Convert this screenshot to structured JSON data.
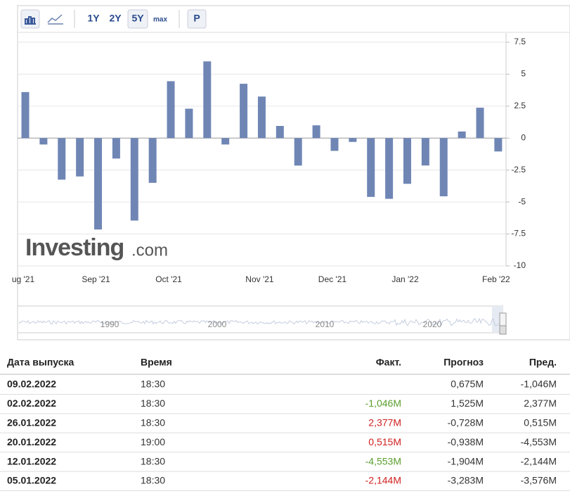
{
  "toolbar": {
    "ranges": [
      "1Y",
      "2Y",
      "5Y",
      "max"
    ],
    "p": "P"
  },
  "chart_data": {
    "type": "bar",
    "categories": [
      "ug '21",
      null,
      null,
      null,
      "Sep '21",
      null,
      null,
      null,
      "Oct '21",
      null,
      null,
      null,
      null,
      "Nov '21",
      null,
      null,
      null,
      "Dec '21",
      null,
      null,
      null,
      "Jan '22",
      null,
      null,
      null,
      null,
      "Feb '22"
    ],
    "values": [
      3.6,
      -0.5,
      -3.25,
      -3.0,
      -7.15,
      -1.6,
      -6.45,
      -3.5,
      4.45,
      2.3,
      6.0,
      -0.5,
      4.25,
      3.25,
      0.95,
      -2.15,
      1.0,
      -1.0,
      -0.3,
      -4.6,
      -4.75,
      -3.576,
      -2.144,
      -4.553,
      0.515,
      2.377,
      -1.046
    ],
    "color": "#6f86b5",
    "ylim": [
      -10,
      7.5
    ],
    "yticks": [
      -10,
      -7.5,
      -5,
      -2.5,
      0,
      2.5,
      5,
      7.5
    ],
    "grid": true
  },
  "watermark": {
    "main": "Investing",
    "suffix": ".com"
  },
  "navigator": {
    "labels": [
      "1990",
      "2000",
      "2010",
      "2020"
    ]
  },
  "table": {
    "headers": [
      "Дата выпуска",
      "Время",
      "Факт.",
      "Прогноз",
      "Пред."
    ],
    "rows": [
      [
        "09.02.2022",
        "18:30",
        "",
        "0,675M",
        "-1,046M"
      ],
      [
        "02.02.2022",
        "18:30",
        "-1,046M",
        "1,525M",
        "2,377M"
      ],
      [
        "26.01.2022",
        "18:30",
        "2,377M",
        "-0,728M",
        "0,515M"
      ],
      [
        "20.01.2022",
        "19:00",
        "0,515M",
        "-0,938M",
        "-4,553M"
      ],
      [
        "12.01.2022",
        "18:30",
        "-4,553M",
        "-1,904M",
        "-2,144M"
      ],
      [
        "05.01.2022",
        "18:30",
        "-2,144M",
        "-3,283M",
        "-3,576M"
      ]
    ],
    "fact_colors": [
      "#333333",
      "#5a9e2e",
      "#d01f1f",
      "#d01f1f",
      "#5a9e2e",
      "#d01f1f"
    ]
  }
}
